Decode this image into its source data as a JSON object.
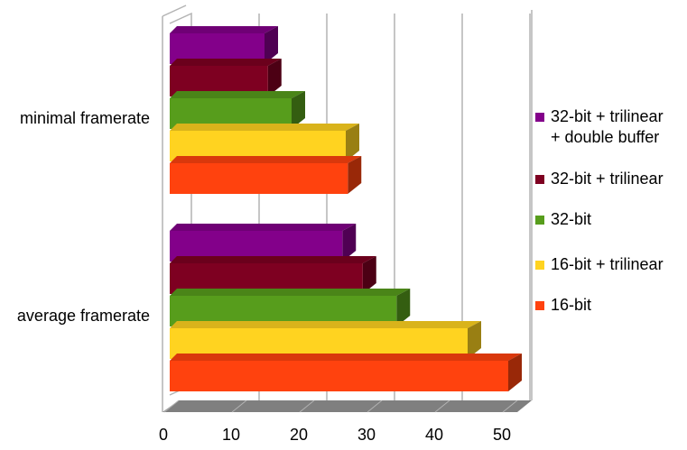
{
  "chart_data": {
    "type": "bar",
    "orientation": "horizontal",
    "style": "3d",
    "categories": [
      "minimal framerate",
      "average framerate"
    ],
    "series": [
      {
        "name": "16-bit",
        "color": "#ff420e",
        "values": [
          26.3,
          50
        ]
      },
      {
        "name": "16-bit + trilinear",
        "color": "#ffd320",
        "values": [
          26,
          44
        ]
      },
      {
        "name": "32-bit",
        "color": "#579d1c",
        "values": [
          18,
          33.5
        ]
      },
      {
        "name": "32-bit + trilinear",
        "color": "#7e0021",
        "values": [
          14.5,
          28.5
        ]
      },
      {
        "name": "32-bit + trilinear + double buffer",
        "legend_lines": [
          "32-bit + trilinear",
          "+ double buffer"
        ],
        "color": "#83008a",
        "values": [
          14,
          25.5
        ]
      }
    ],
    "xlim": [
      0,
      50
    ],
    "xticks": [
      "0",
      "10",
      "20",
      "30",
      "40",
      "50"
    ],
    "grid": true,
    "legend": "right"
  }
}
